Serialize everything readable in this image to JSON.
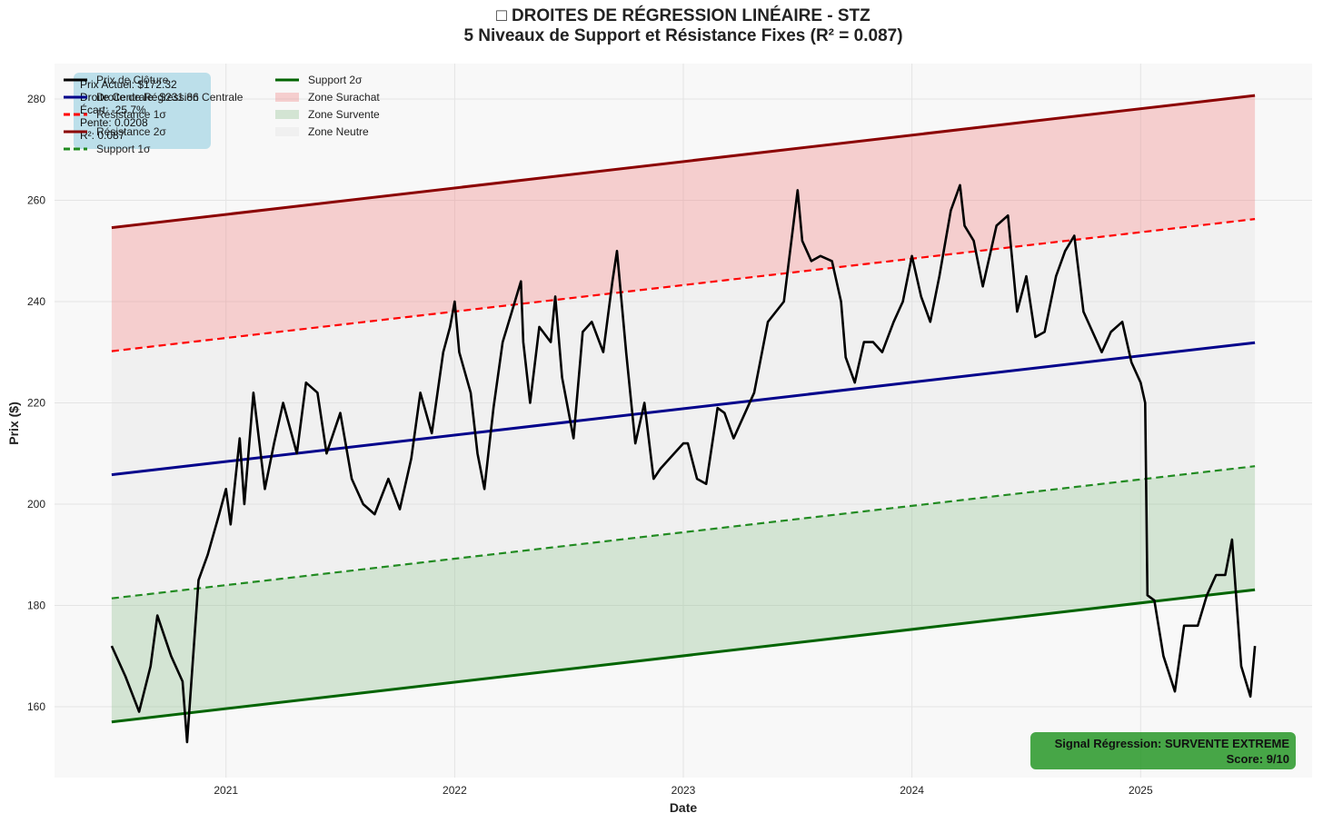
{
  "chart_data": {
    "type": "line",
    "title": "□ DROITES DE RÉGRESSION LINÉAIRE - STZ",
    "subtitle": "5 Niveaux de Support et Résistance Fixes (R² = 0.087)",
    "xlabel": "Date",
    "ylabel": "Prix ($)",
    "xlim": [
      2020.25,
      2025.75
    ],
    "ylim": [
      146,
      287
    ],
    "x_ticks": [
      2021,
      2022,
      2023,
      2024,
      2025
    ],
    "x_tick_labels": [
      "2021",
      "2022",
      "2023",
      "2024",
      "2025"
    ],
    "y_ticks": [
      160,
      180,
      200,
      220,
      240,
      260,
      280
    ],
    "y_tick_labels": [
      "160",
      "180",
      "200",
      "220",
      "240",
      "260",
      "280"
    ],
    "grid": true,
    "legend_position": "top-left",
    "regression_lines": [
      {
        "name": "Droite de Régression Centrale",
        "x": [
          2020.5,
          2025.5
        ],
        "y": [
          205.8,
          231.9
        ],
        "color": "#00008b",
        "style": "solid"
      },
      {
        "name": "Résistance 1σ",
        "x": [
          2020.5,
          2025.5
        ],
        "y": [
          230.2,
          256.3
        ],
        "color": "#ff0000",
        "style": "dashed"
      },
      {
        "name": "Résistance 2σ",
        "x": [
          2020.5,
          2025.5
        ],
        "y": [
          254.6,
          280.7
        ],
        "color": "#8b0000",
        "style": "solid"
      },
      {
        "name": "Support 1σ",
        "x": [
          2020.5,
          2025.5
        ],
        "y": [
          181.4,
          207.5
        ],
        "color": "#228b22",
        "style": "dashed"
      },
      {
        "name": "Support 2σ",
        "x": [
          2020.5,
          2025.5
        ],
        "y": [
          157.0,
          183.1
        ],
        "color": "#006400",
        "style": "solid"
      }
    ],
    "zones": [
      {
        "name": "Zone Surachat",
        "between": [
          "Résistance 1σ",
          "Résistance 2σ"
        ],
        "color": "#f08080"
      },
      {
        "name": "Zone Survente",
        "between": [
          "Support 2σ",
          "Support 1σ"
        ],
        "color": "#90c090"
      },
      {
        "name": "Zone Neutre",
        "between": [
          "Support 1σ",
          "Résistance 1σ"
        ],
        "color": "#dddddd"
      }
    ],
    "series": [
      {
        "name": "Prix de Clôture",
        "color": "#000000",
        "x": [
          2020.5,
          2020.56,
          2020.62,
          2020.67,
          2020.7,
          2020.76,
          2020.81,
          2020.83,
          2020.88,
          2020.92,
          2020.97,
          2021.0,
          2021.02,
          2021.06,
          2021.08,
          2021.12,
          2021.17,
          2021.21,
          2021.25,
          2021.31,
          2021.35,
          2021.4,
          2021.44,
          2021.5,
          2021.55,
          2021.6,
          2021.65,
          2021.71,
          2021.76,
          2021.81,
          2021.85,
          2021.9,
          2021.95,
          2021.98,
          2022.0,
          2022.02,
          2022.07,
          2022.1,
          2022.13,
          2022.17,
          2022.21,
          2022.25,
          2022.29,
          2022.3,
          2022.33,
          2022.37,
          2022.42,
          2022.44,
          2022.47,
          2022.52,
          2022.56,
          2022.6,
          2022.65,
          2022.69,
          2022.71,
          2022.75,
          2022.79,
          2022.83,
          2022.87,
          2022.9,
          2022.96,
          2023.0,
          2023.02,
          2023.06,
          2023.1,
          2023.15,
          2023.18,
          2023.22,
          2023.25,
          2023.31,
          2023.37,
          2023.44,
          2023.5,
          2023.52,
          2023.56,
          2023.6,
          2023.65,
          2023.69,
          2023.71,
          2023.75,
          2023.79,
          2023.83,
          2023.87,
          2023.92,
          2023.96,
          2024.0,
          2024.04,
          2024.08,
          2024.12,
          2024.17,
          2024.21,
          2024.23,
          2024.27,
          2024.31,
          2024.37,
          2024.42,
          2024.46,
          2024.5,
          2024.54,
          2024.58,
          2024.63,
          2024.67,
          2024.71,
          2024.75,
          2024.79,
          2024.83,
          2024.87,
          2024.92,
          2024.96,
          2025.0,
          2025.02,
          2025.03,
          2025.06,
          2025.1,
          2025.15,
          2025.19,
          2025.25,
          2025.29,
          2025.33,
          2025.37,
          2025.4,
          2025.44,
          2025.48,
          2025.5
        ],
        "y": [
          172,
          166,
          159,
          168,
          178,
          170,
          165,
          153,
          185,
          190,
          198,
          203,
          196,
          213,
          200,
          222,
          203,
          212,
          220,
          210,
          224,
          222,
          210,
          218,
          205,
          200,
          198,
          205,
          199,
          209,
          222,
          214,
          230,
          235,
          240,
          230,
          222,
          210,
          203,
          219,
          232,
          238,
          244,
          232,
          220,
          235,
          232,
          241,
          225,
          213,
          234,
          236,
          230,
          244,
          250,
          230,
          212,
          220,
          205,
          207,
          210,
          212,
          212,
          205,
          204,
          219,
          218,
          213,
          216,
          222,
          236,
          240,
          262,
          252,
          248,
          249,
          248,
          240,
          229,
          224,
          232,
          232,
          230,
          236,
          240,
          249,
          241,
          236,
          245,
          258,
          263,
          255,
          252,
          243,
          255,
          257,
          238,
          245,
          233,
          234,
          245,
          250,
          253,
          238,
          234,
          230,
          234,
          236,
          228,
          224,
          220,
          182,
          181,
          170,
          163,
          176,
          176,
          182,
          186,
          186,
          193,
          168,
          162,
          172
        ]
      }
    ],
    "info_box": [
      "Prix Actuel: $172.32",
      "Droite Centrale: $231.86",
      "Écart: -25.7%",
      "Pente: 0.0208",
      "R²: 0.087"
    ],
    "signal_box": {
      "line1": "Signal Régression: SURVENTE EXTREME",
      "line2": "Score: 9/10",
      "color": "#2e9a2e"
    }
  }
}
